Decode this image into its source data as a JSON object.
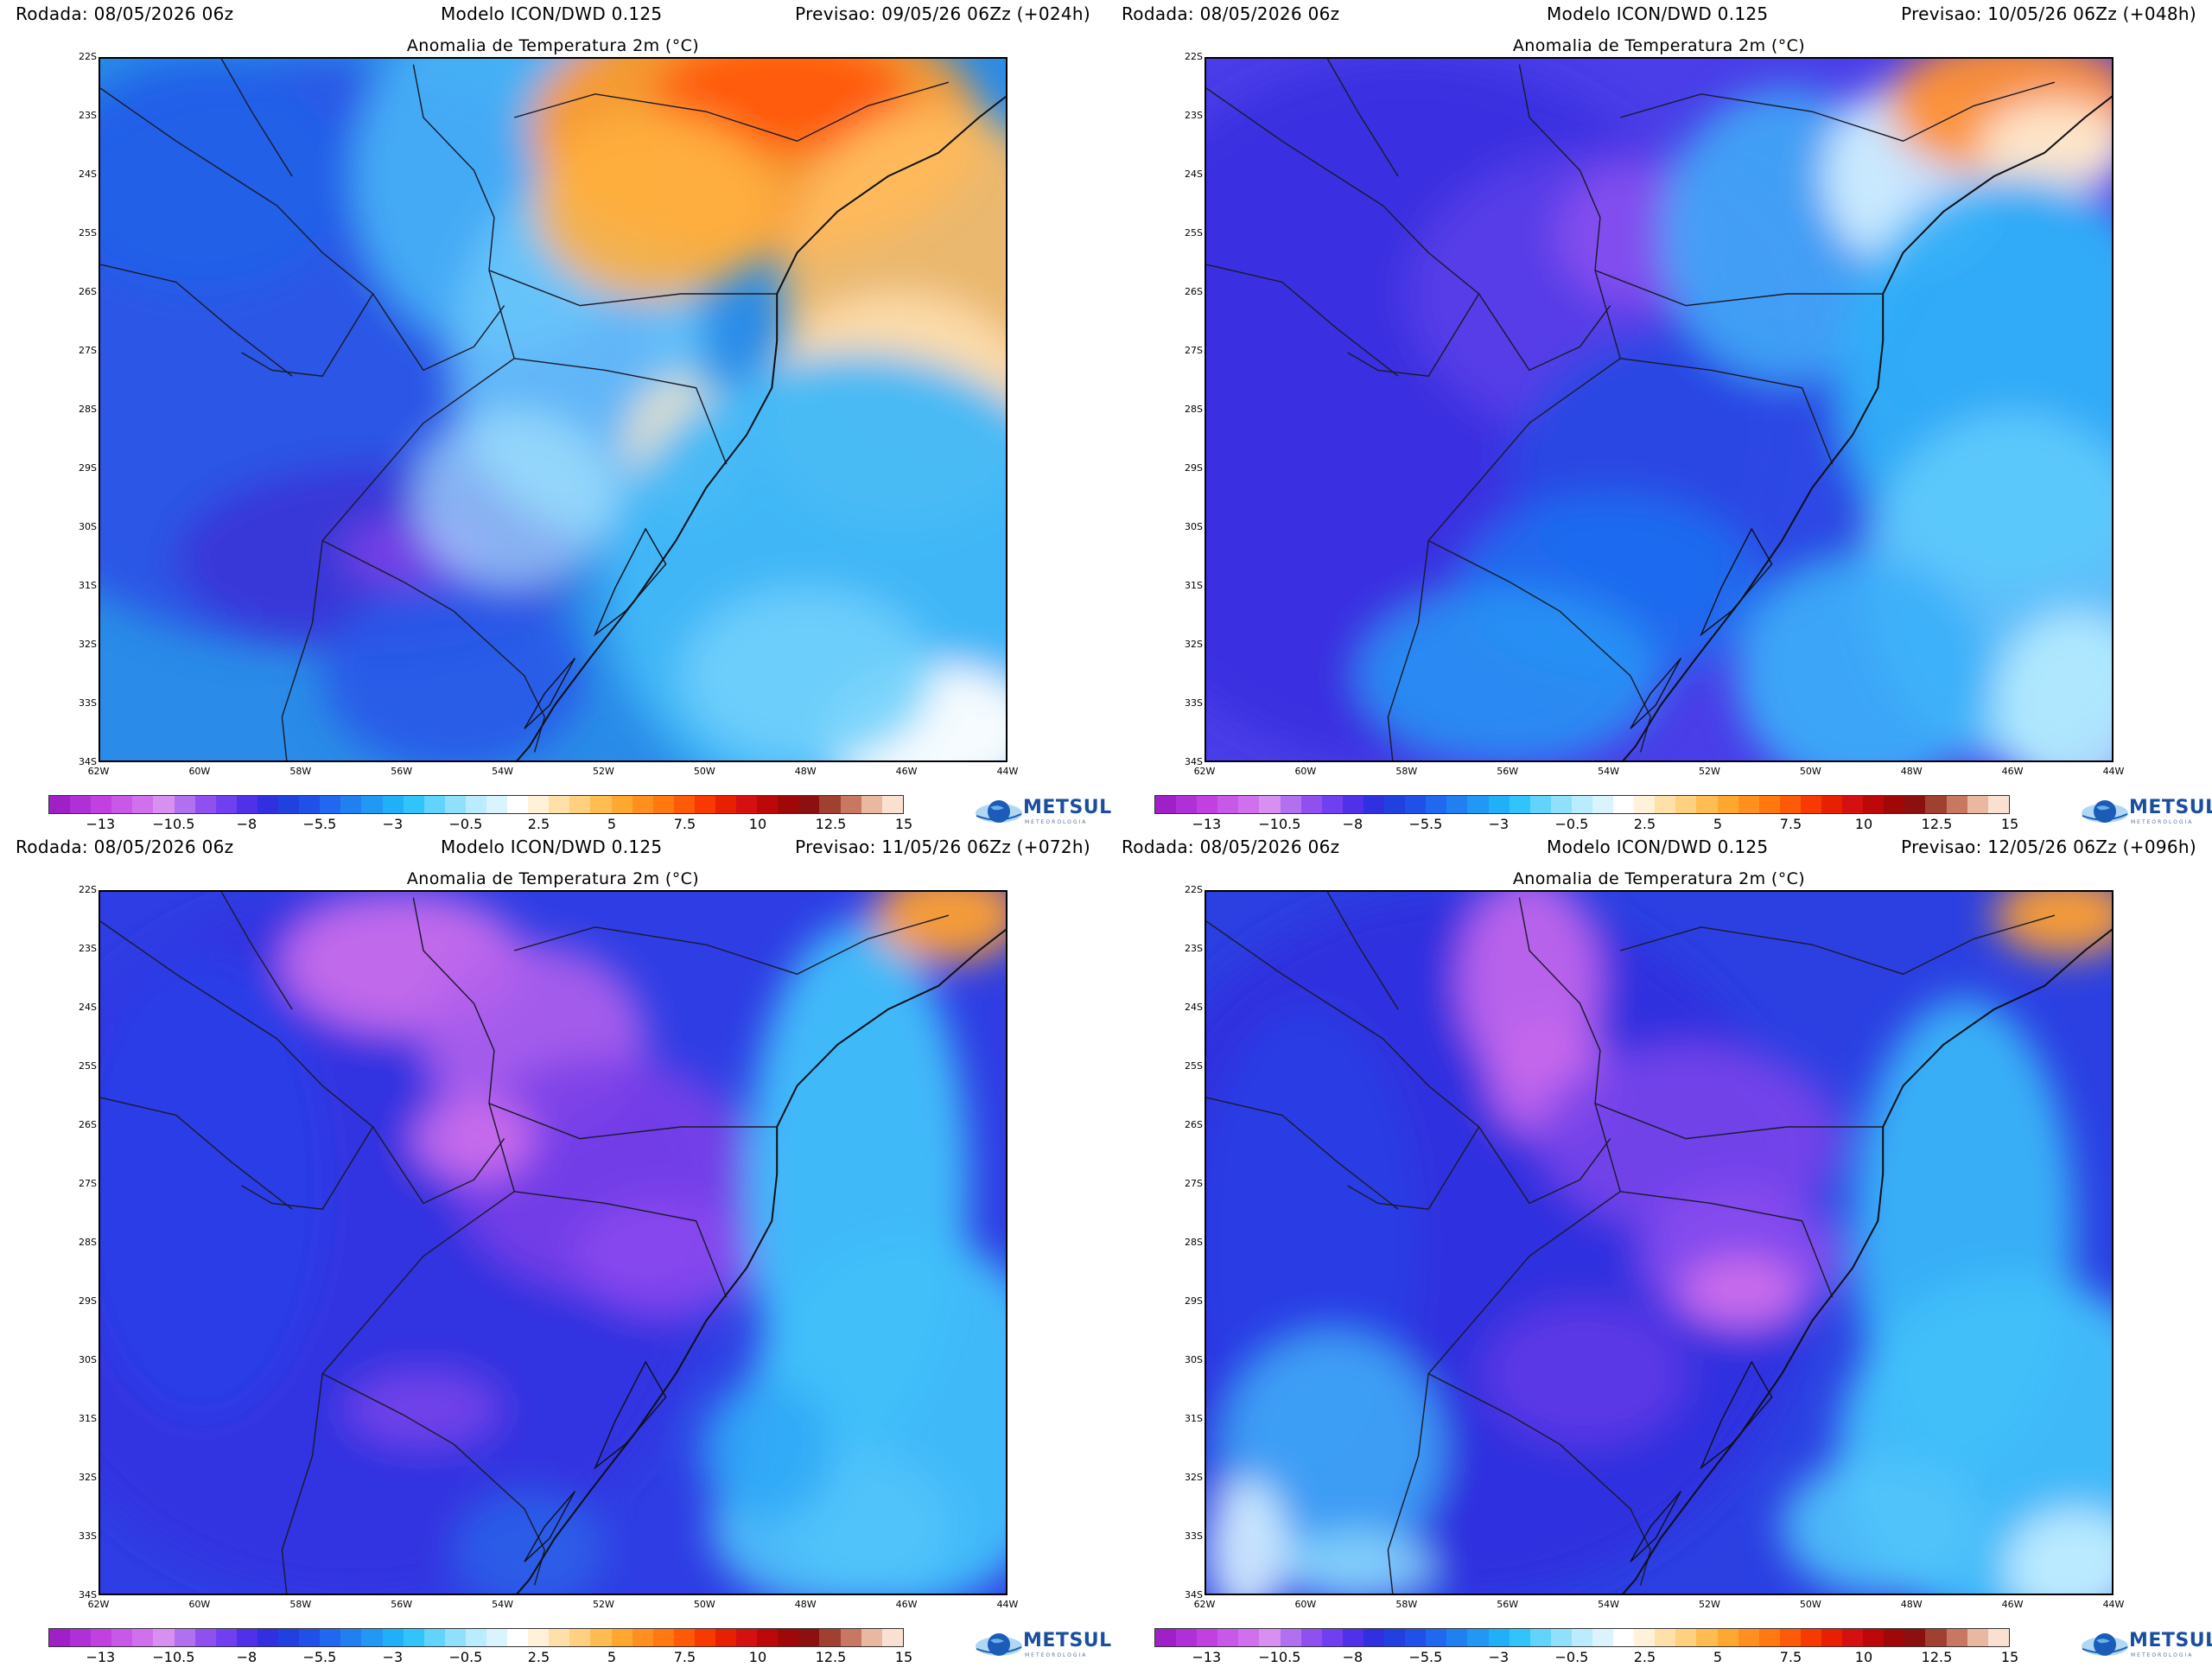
{
  "panels": [
    {
      "run": "Rodada: 08/05/2026 06z",
      "model": "Modelo ICON/DWD 0.125",
      "forecast": "Previsao: 09/05/26 06Zz (+024h)",
      "title": "Anomalia de Temperatura 2m (°C)",
      "scenario": 0
    },
    {
      "run": "Rodada: 08/05/2026 06z",
      "model": "Modelo ICON/DWD 0.125",
      "forecast": "Previsao: 10/05/26 06Zz (+048h)",
      "title": "Anomalia de Temperatura 2m (°C)",
      "scenario": 1
    },
    {
      "run": "Rodada: 08/05/2026 06z",
      "model": "Modelo ICON/DWD 0.125",
      "forecast": "Previsao: 11/05/26 06Zz (+072h)",
      "title": "Anomalia de Temperatura 2m (°C)",
      "scenario": 2
    },
    {
      "run": "Rodada: 08/05/2026 06z",
      "model": "Modelo ICON/DWD 0.125",
      "forecast": "Previsao: 12/05/26 06Zz (+096h)",
      "title": "Anomalia de Temperatura 2m (°C)",
      "scenario": 3
    }
  ],
  "lat_labels": [
    "22S",
    "23S",
    "24S",
    "25S",
    "26S",
    "27S",
    "28S",
    "29S",
    "30S",
    "31S",
    "32S",
    "33S",
    "34S"
  ],
  "lon_labels": [
    "62W",
    "60W",
    "58W",
    "56W",
    "54W",
    "52W",
    "50W",
    "48W",
    "46W",
    "44W"
  ],
  "colorbar": {
    "labels": [
      "−13",
      "−10.5",
      "−8",
      "−5.5",
      "−3",
      "−0.5",
      "2.5",
      "5",
      "7.5",
      "10",
      "12.5",
      "15"
    ],
    "colors": [
      "#a020c8",
      "#b030d8",
      "#c040e0",
      "#c858e8",
      "#d070ec",
      "#d890f0",
      "#b070f0",
      "#9050f0",
      "#7040f0",
      "#5030e8",
      "#3030e0",
      "#2040e0",
      "#2050e8",
      "#2068f0",
      "#2080f0",
      "#2098f4",
      "#20b0f8",
      "#30c4fa",
      "#60d4fc",
      "#90e0fc",
      "#b8ecfe",
      "#daf4ff",
      "#ffffff",
      "#fff2d8",
      "#ffe0a8",
      "#ffd080",
      "#ffbc50",
      "#ffa830",
      "#ff9020",
      "#ff7810",
      "#ff5a08",
      "#f83a00",
      "#e82000",
      "#d41010",
      "#bc0808",
      "#a00808",
      "#8c1010",
      "#a04030",
      "#c87860",
      "#e8b8a0",
      "#fae0d0"
    ]
  },
  "logo": {
    "brand_met": "MET",
    "brand_sul": "SUL",
    "tagline": "METEOROLOGIA"
  }
}
